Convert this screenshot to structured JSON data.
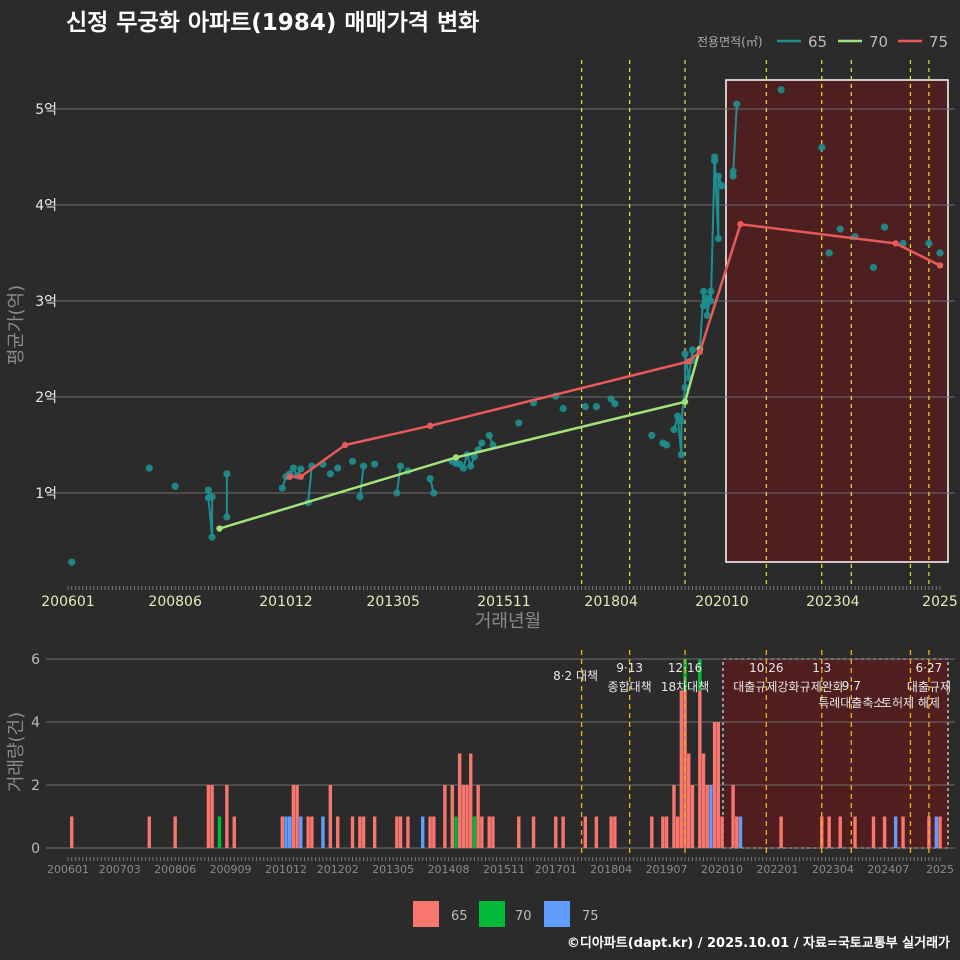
{
  "title": "신정 무궁화 아파트(1984) 매매가격 변화",
  "footer": "©디아파트(dapt.kr) / 2025.10.01 / 자료=국토교통부 실거래가",
  "colors": {
    "background": "#2b2b2c",
    "s65": "#1f8f8f",
    "s70": "#a3e27a",
    "s75": "#e85a5a",
    "bar65": "#f8766d",
    "bar70": "#00ba38",
    "bar75": "#619cff",
    "policy": "#e8e83a",
    "highlight": "#5a1c1c"
  },
  "chart_data": [
    {
      "type": "line",
      "xlabel": "거래년월",
      "ylabel": "평균가(억)",
      "legend_title": "전용면적(㎡)",
      "legend_position": "top-right",
      "x_ticks": [
        "200601",
        "200806",
        "201012",
        "201305",
        "201511",
        "201804",
        "202010",
        "202304",
        "2025"
      ],
      "y_ticks": [
        "1억",
        "2억",
        "3억",
        "4억",
        "5억"
      ],
      "ylim": [
        0,
        5.5
      ],
      "highlight_range": [
        "2020-11",
        "2025-10"
      ],
      "policy_dates": [
        "2017-08",
        "2018-09",
        "2019-12",
        "2021-10",
        "2023-01",
        "2023-09",
        "2025-01",
        "2025-06"
      ],
      "series": [
        {
          "name": "65",
          "mode": "line+points",
          "points": [
            [
              "2006-02",
              0.28
            ],
            [
              "2007-11",
              1.26
            ],
            [
              "2008-06",
              1.07
            ],
            [
              "2009-03",
              1.03
            ],
            [
              "2009-03",
              0.95
            ],
            [
              "2009-04",
              0.54
            ],
            [
              "2009-04",
              0.96
            ],
            [
              "2009-08",
              0.75
            ],
            [
              "2009-08",
              1.2
            ],
            [
              "2010-11",
              1.05
            ],
            [
              "2010-12",
              1.17
            ],
            [
              "2011-01",
              1.2
            ],
            [
              "2011-02",
              1.26
            ],
            [
              "2011-03",
              1.18
            ],
            [
              "2011-04",
              1.25
            ],
            [
              "2011-06",
              0.9
            ],
            [
              "2011-07",
              1.28
            ],
            [
              "2011-10",
              1.3
            ],
            [
              "2011-12",
              1.2
            ],
            [
              "2012-02",
              1.26
            ],
            [
              "2012-06",
              1.33
            ],
            [
              "2012-08",
              0.96
            ],
            [
              "2012-09",
              1.28
            ],
            [
              "2012-12",
              1.3
            ],
            [
              "2013-06",
              1.0
            ],
            [
              "2013-07",
              1.28
            ],
            [
              "2013-09",
              1.23
            ],
            [
              "2014-03",
              1.15
            ],
            [
              "2014-04",
              1.0
            ],
            [
              "2014-09",
              1.33
            ],
            [
              "2014-10",
              1.31
            ],
            [
              "2014-11",
              1.3
            ],
            [
              "2014-12",
              1.26
            ],
            [
              "2015-01",
              1.4
            ],
            [
              "2015-02",
              1.28
            ],
            [
              "2015-03",
              1.38
            ],
            [
              "2015-04",
              1.45
            ],
            [
              "2015-05",
              1.52
            ],
            [
              "2015-07",
              1.6
            ],
            [
              "2015-08",
              1.5
            ],
            [
              "2016-03",
              1.73
            ],
            [
              "2016-07",
              1.94
            ],
            [
              "2017-01",
              2.01
            ],
            [
              "2017-03",
              1.88
            ],
            [
              "2017-09",
              1.9
            ],
            [
              "2017-12",
              1.9
            ],
            [
              "2018-04",
              1.98
            ],
            [
              "2018-05",
              1.93
            ],
            [
              "2019-03",
              1.6
            ],
            [
              "2019-06",
              1.52
            ],
            [
              "2019-07",
              1.5
            ],
            [
              "2019-09",
              1.66
            ],
            [
              "2019-10",
              1.8
            ],
            [
              "2019-11",
              1.4
            ],
            [
              "2019-11",
              1.75
            ],
            [
              "2019-12",
              2.1
            ],
            [
              "2019-12",
              2.45
            ],
            [
              "2020-01",
              2.2
            ],
            [
              "2020-02",
              2.49
            ],
            [
              "2020-02",
              2.38
            ],
            [
              "2020-04",
              2.5
            ],
            [
              "2020-05",
              3.1
            ],
            [
              "2020-05",
              2.95
            ],
            [
              "2020-06",
              3.03
            ],
            [
              "2020-06",
              2.85
            ],
            [
              "2020-07",
              3.1
            ],
            [
              "2020-07",
              3.0
            ],
            [
              "2020-08",
              4.46
            ],
            [
              "2020-08",
              4.5
            ],
            [
              "2020-09",
              3.65
            ],
            [
              "2020-09",
              4.3
            ],
            [
              "2020-10",
              4.2
            ],
            [
              "2021-01",
              4.35
            ],
            [
              "2021-01",
              4.3
            ],
            [
              "2021-02",
              5.05
            ],
            [
              "2022-02",
              5.2
            ],
            [
              "2023-01",
              4.6
            ],
            [
              "2023-03",
              3.5
            ],
            [
              "2023-06",
              3.75
            ],
            [
              "2023-10",
              3.67
            ],
            [
              "2024-03",
              3.35
            ],
            [
              "2024-06",
              3.77
            ],
            [
              "2024-11",
              3.6
            ],
            [
              "2025-06",
              3.6
            ],
            [
              "2025-09",
              3.5
            ]
          ]
        },
        {
          "name": "70",
          "mode": "line",
          "points": [
            [
              "2009-06",
              0.63
            ],
            [
              "2014-10",
              1.37
            ],
            [
              "2019-12",
              1.95
            ],
            [
              "2020-04",
              2.5
            ]
          ]
        },
        {
          "name": "75",
          "mode": "line",
          "points": [
            [
              "2011-01",
              1.17
            ],
            [
              "2011-04",
              1.17
            ],
            [
              "2012-04",
              1.5
            ],
            [
              "2014-03",
              1.7
            ],
            [
              "2020-01",
              2.37
            ],
            [
              "2020-04",
              2.47
            ],
            [
              "2021-03",
              3.8
            ],
            [
              "2024-09",
              3.6
            ],
            [
              "2025-09",
              3.37
            ]
          ]
        }
      ]
    },
    {
      "type": "bar",
      "xlabel": "",
      "ylabel": "거래량(건)",
      "legend_position": "bottom",
      "x_ticks": [
        "200601",
        "200703",
        "200806",
        "200909",
        "201012",
        "201202",
        "201305",
        "201408",
        "201511",
        "201701",
        "201804",
        "201907",
        "202010",
        "202201",
        "202304",
        "202407",
        "2025"
      ],
      "y_ticks": [
        "0",
        "2",
        "4",
        "6"
      ],
      "ylim": [
        0,
        6
      ],
      "series_names": [
        "65",
        "70",
        "75"
      ],
      "annotations": [
        {
          "date": "2017-08",
          "lines": [
            "8·2 대책"
          ]
        },
        {
          "date": "2018-09",
          "lines": [
            "9·13",
            "종합대책"
          ]
        },
        {
          "date": "2019-12",
          "lines": [
            "12·16",
            "18차대책"
          ]
        },
        {
          "date": "2021-10",
          "lines": [
            "10·26",
            "대출규제강화"
          ]
        },
        {
          "date": "2023-01",
          "lines": [
            "1·3",
            "규제완화"
          ]
        },
        {
          "date": "2023-09",
          "lines": [
            "9·7",
            "특례대출축소"
          ]
        },
        {
          "date": "2025-01",
          "lines": [
            "",
            "토허제 해제"
          ]
        },
        {
          "date": "2025-06",
          "lines": [
            "6·27",
            "대출규제"
          ]
        }
      ],
      "bars": [
        [
          "2006-02",
          "65",
          1
        ],
        [
          "2007-11",
          "65",
          1
        ],
        [
          "2008-06",
          "65",
          1
        ],
        [
          "2009-03",
          "65",
          2
        ],
        [
          "2009-04",
          "65",
          2
        ],
        [
          "2009-06",
          "70",
          1
        ],
        [
          "2009-08",
          "65",
          2
        ],
        [
          "2009-10",
          "65",
          1
        ],
        [
          "2010-11",
          "65",
          1
        ],
        [
          "2010-12",
          "75",
          1
        ],
        [
          "2011-01",
          "75",
          1
        ],
        [
          "2011-02",
          "65",
          2
        ],
        [
          "2011-03",
          "65",
          2
        ],
        [
          "2011-04",
          "75",
          1
        ],
        [
          "2011-06",
          "65",
          1
        ],
        [
          "2011-07",
          "65",
          1
        ],
        [
          "2011-10",
          "75",
          1
        ],
        [
          "2011-12",
          "65",
          2
        ],
        [
          "2012-02",
          "65",
          1
        ],
        [
          "2012-06",
          "65",
          1
        ],
        [
          "2012-08",
          "65",
          1
        ],
        [
          "2012-09",
          "65",
          1
        ],
        [
          "2012-12",
          "65",
          1
        ],
        [
          "2013-06",
          "65",
          1
        ],
        [
          "2013-07",
          "65",
          1
        ],
        [
          "2013-09",
          "65",
          1
        ],
        [
          "2014-01",
          "75",
          1
        ],
        [
          "2014-03",
          "65",
          1
        ],
        [
          "2014-04",
          "65",
          1
        ],
        [
          "2014-07",
          "65",
          2
        ],
        [
          "2014-09",
          "65",
          2
        ],
        [
          "2014-10",
          "70",
          1
        ],
        [
          "2014-11",
          "65",
          3
        ],
        [
          "2014-12",
          "65",
          2
        ],
        [
          "2015-01",
          "65",
          2
        ],
        [
          "2015-02",
          "65",
          3
        ],
        [
          "2015-03",
          "70",
          1
        ],
        [
          "2015-04",
          "65",
          2
        ],
        [
          "2015-05",
          "65",
          1
        ],
        [
          "2015-07",
          "65",
          1
        ],
        [
          "2015-08",
          "65",
          1
        ],
        [
          "2016-03",
          "65",
          1
        ],
        [
          "2016-07",
          "65",
          1
        ],
        [
          "2017-01",
          "65",
          1
        ],
        [
          "2017-03",
          "65",
          1
        ],
        [
          "2017-09",
          "65",
          1
        ],
        [
          "2017-12",
          "65",
          1
        ],
        [
          "2018-04",
          "65",
          1
        ],
        [
          "2018-05",
          "65",
          1
        ],
        [
          "2019-03",
          "65",
          1
        ],
        [
          "2019-06",
          "65",
          1
        ],
        [
          "2019-07",
          "65",
          1
        ],
        [
          "2019-09",
          "65",
          2
        ],
        [
          "2019-10",
          "65",
          1
        ],
        [
          "2019-11",
          "65",
          5
        ],
        [
          "2019-12",
          "65",
          5
        ],
        [
          "2019-12",
          "70",
          1
        ],
        [
          "2020-01",
          "65",
          3
        ],
        [
          "2020-02",
          "65",
          2
        ],
        [
          "2020-04",
          "65",
          5
        ],
        [
          "2020-04",
          "70",
          1
        ],
        [
          "2020-05",
          "65",
          3
        ],
        [
          "2020-06",
          "65",
          2
        ],
        [
          "2020-07",
          "75",
          2
        ],
        [
          "2020-08",
          "65",
          4
        ],
        [
          "2020-09",
          "65",
          4
        ],
        [
          "2020-10",
          "65",
          1
        ],
        [
          "2021-01",
          "65",
          2
        ],
        [
          "2021-02",
          "65",
          1
        ],
        [
          "2021-03",
          "75",
          1
        ],
        [
          "2022-02",
          "65",
          1
        ],
        [
          "2023-01",
          "65",
          1
        ],
        [
          "2023-03",
          "65",
          1
        ],
        [
          "2023-06",
          "65",
          1
        ],
        [
          "2023-10",
          "65",
          1
        ],
        [
          "2024-03",
          "65",
          1
        ],
        [
          "2024-06",
          "65",
          1
        ],
        [
          "2024-09",
          "75",
          1
        ],
        [
          "2024-11",
          "65",
          1
        ],
        [
          "2025-06",
          "65",
          1
        ],
        [
          "2025-08",
          "75",
          1
        ],
        [
          "2025-09",
          "65",
          1
        ]
      ]
    }
  ]
}
